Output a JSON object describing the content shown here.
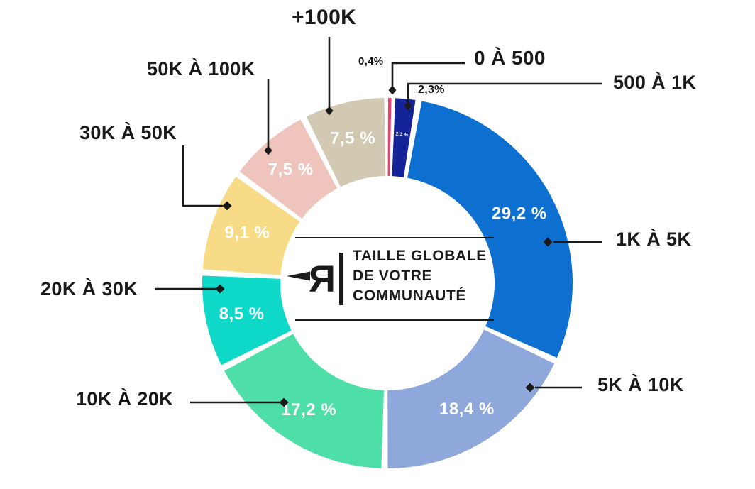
{
  "center": {
    "logo_letter": "R",
    "title_lines": [
      "TAILLE GLOBALE",
      "DE VOTRE",
      "COMMUNAUTÉ"
    ]
  },
  "chart_data": {
    "type": "pie",
    "subtype": "donut",
    "title": "TAILLE GLOBALE DE VOTRE COMMUNAUTÉ",
    "unit": "%",
    "start_angle_deg": 0,
    "clockwise": true,
    "legend_position": "callout-labels-around-donut",
    "slices": [
      {
        "label": "0 À 500",
        "value": 0.4,
        "outside_value_label": "0,4%",
        "color": "#EE3E6E"
      },
      {
        "label": "500 À 1K",
        "value": 2.3,
        "outside_value_label": "2,3%",
        "inside_label": "2,3 %",
        "color": "#152399"
      },
      {
        "label": "1K À 5K",
        "value": 29.2,
        "inside_label": "29,2 %",
        "color": "#0D6FD0"
      },
      {
        "label": "5K À 10K",
        "value": 18.4,
        "inside_label": "18,4 %",
        "color": "#8FA8DC"
      },
      {
        "label": "10K À 20K",
        "value": 17.2,
        "inside_label": "17,2 %",
        "color": "#4DDFA7"
      },
      {
        "label": "20K À 30K",
        "value": 8.5,
        "inside_label": "8,5 %",
        "color": "#0ED8C8"
      },
      {
        "label": "30K À 50K",
        "value": 9.1,
        "inside_label": "9,1 %",
        "color": "#F8DB86"
      },
      {
        "label": "50K À 100K",
        "value": 7.5,
        "inside_label": "7,5 %",
        "color": "#EEC4BD"
      },
      {
        "label": "+100K",
        "value": 7.5,
        "inside_label": "7,5 %",
        "color": "#D2C9B2"
      }
    ]
  }
}
